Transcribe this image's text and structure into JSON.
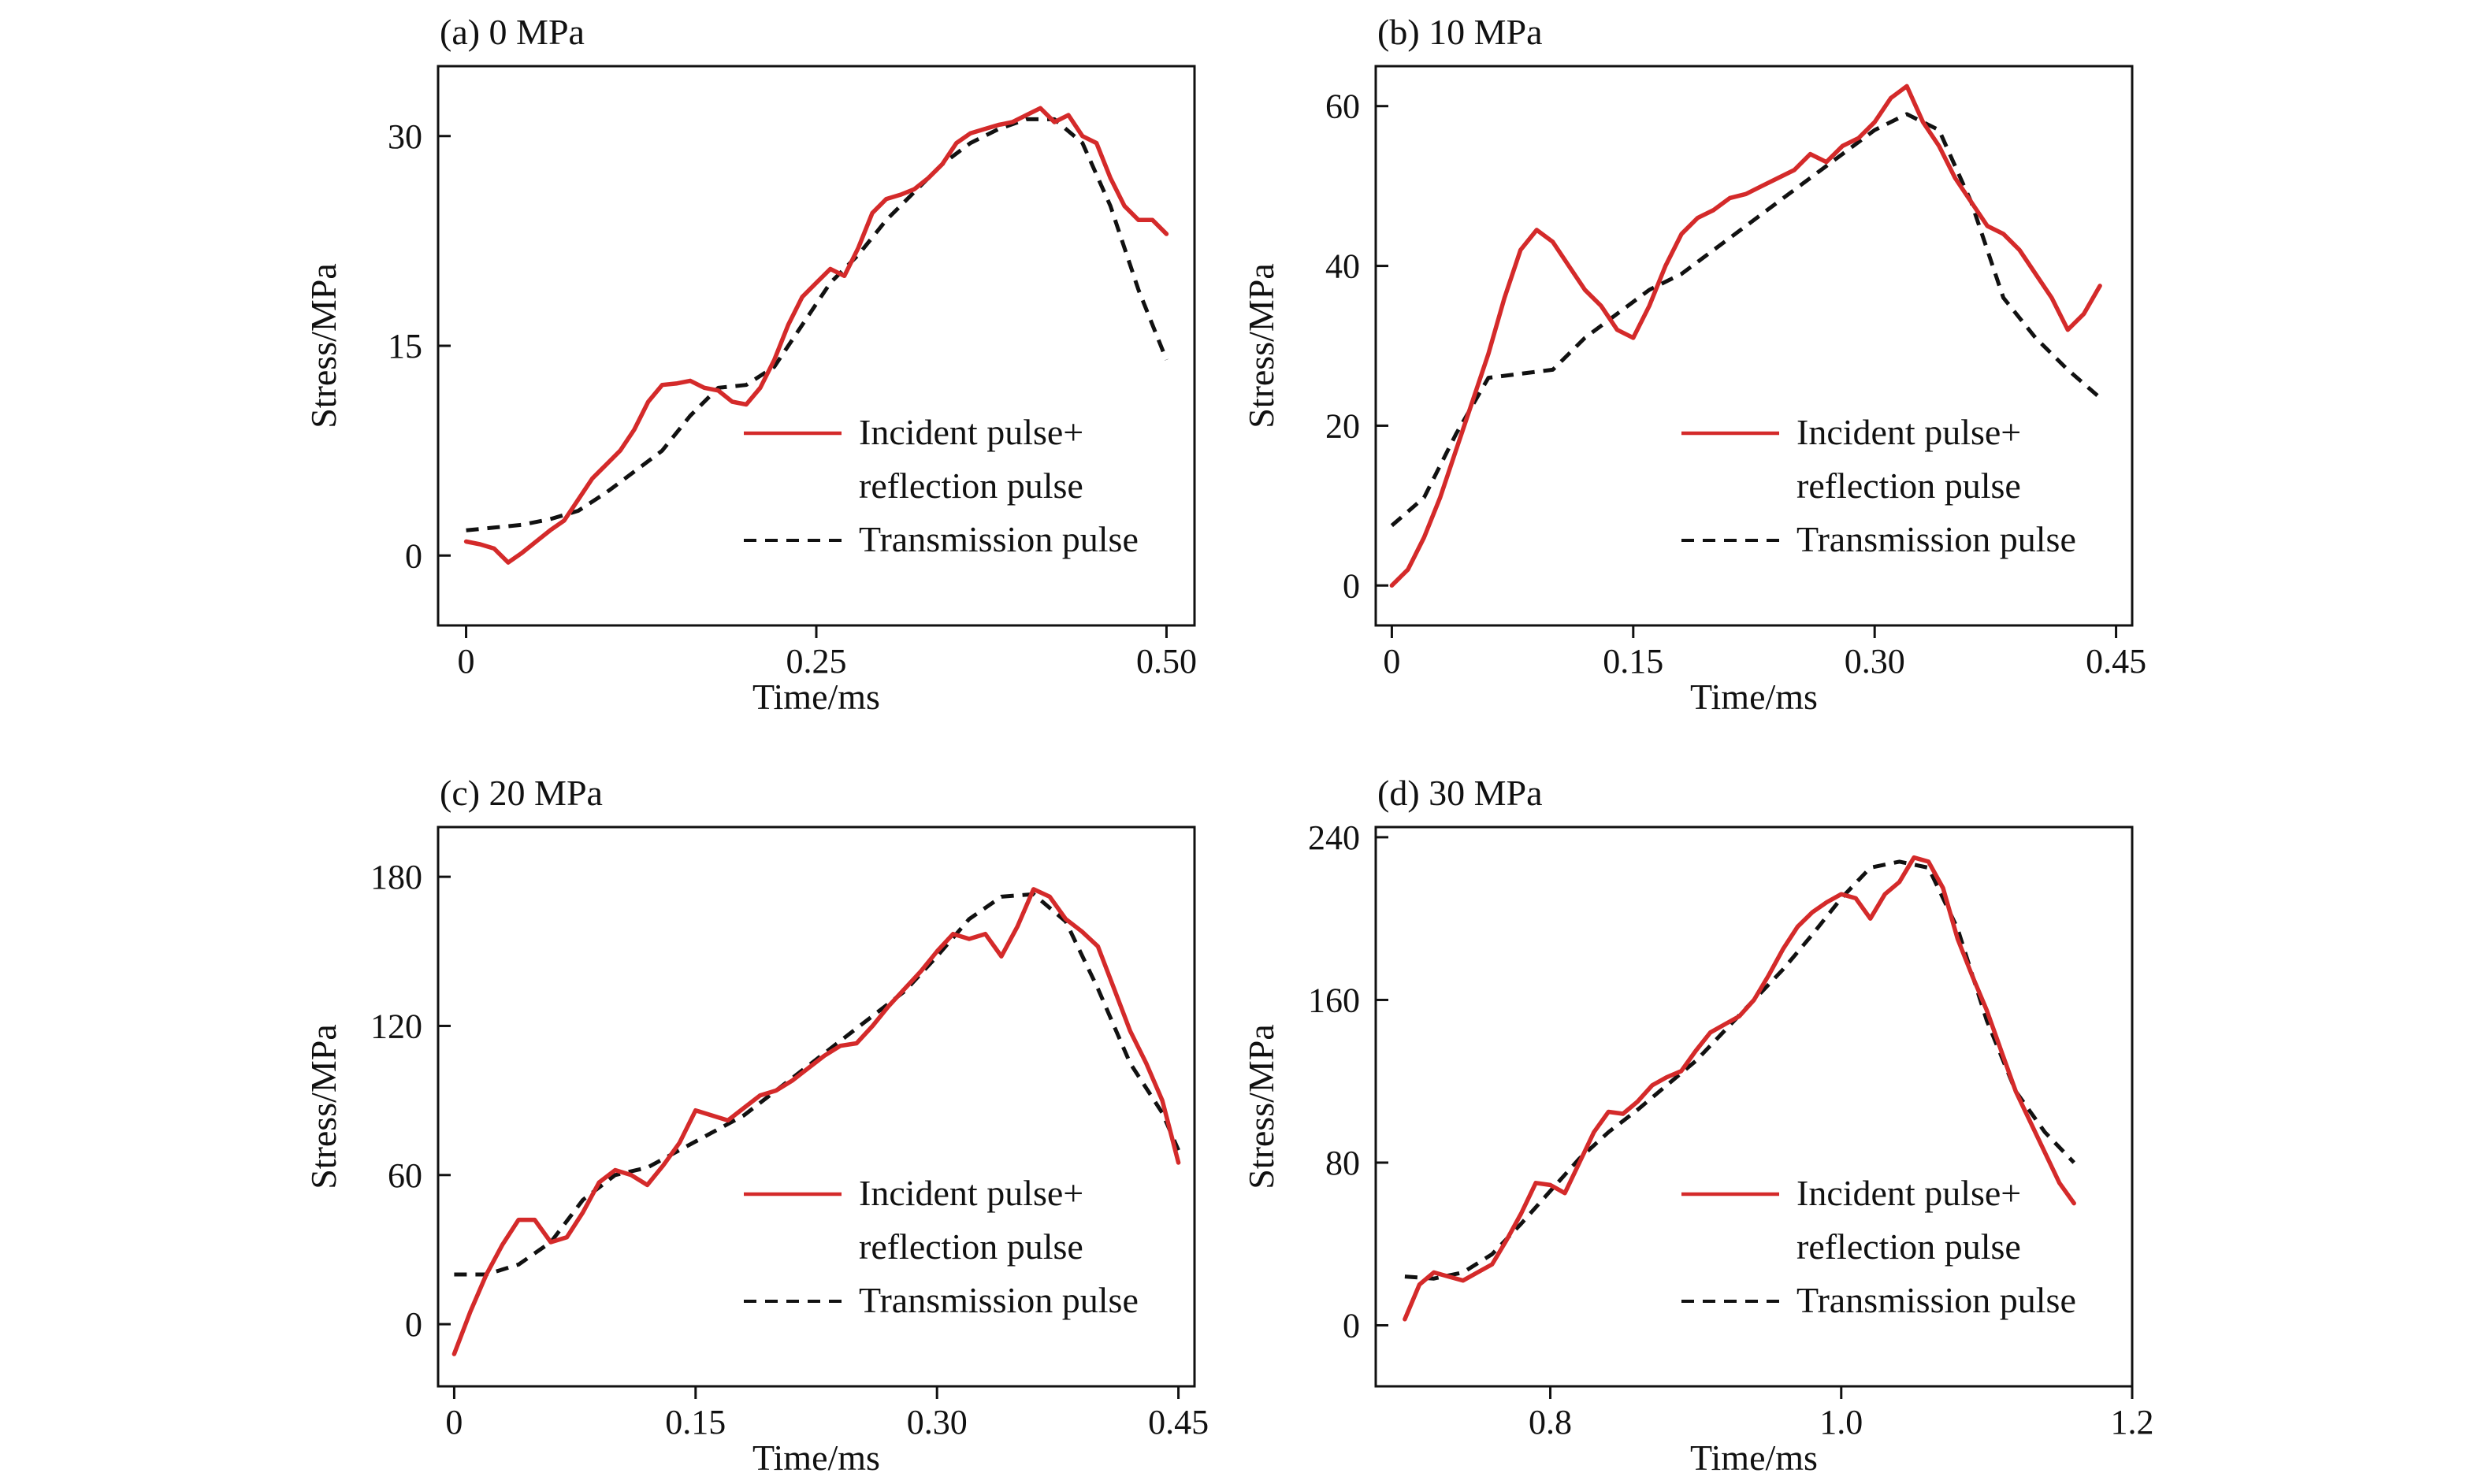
{
  "colors": {
    "incident": "#d42a2a",
    "transmission": "#111111",
    "axis": "#111111"
  },
  "chart_data": [
    {
      "type": "line",
      "title": "(a) 0 MPa",
      "xlabel": "Time/ms",
      "ylabel": "Stress/MPa",
      "xlim": [
        -0.02,
        0.52
      ],
      "ylim": [
        -5,
        35
      ],
      "xticks": [
        0,
        0.25,
        0.5
      ],
      "xtick_labels": [
        "0",
        "0.25",
        "0.50"
      ],
      "yticks": [
        0,
        15,
        30
      ],
      "ytick_labels": [
        "0",
        "15",
        "30"
      ],
      "legend_position": "lower-right",
      "series": [
        {
          "name": "Incident pulse+\nreflection pulse",
          "legend_lines": [
            "Incident pulse+",
            "reflection pulse"
          ],
          "style": "solid",
          "color": "#d42a2a",
          "x": [
            0,
            0.01,
            0.02,
            0.03,
            0.04,
            0.05,
            0.06,
            0.07,
            0.08,
            0.09,
            0.1,
            0.11,
            0.12,
            0.13,
            0.14,
            0.15,
            0.16,
            0.17,
            0.18,
            0.19,
            0.2,
            0.21,
            0.22,
            0.23,
            0.24,
            0.25,
            0.26,
            0.27,
            0.28,
            0.29,
            0.3,
            0.31,
            0.32,
            0.33,
            0.34,
            0.35,
            0.36,
            0.37,
            0.38,
            0.39,
            0.4,
            0.41,
            0.42,
            0.43,
            0.44,
            0.45,
            0.46,
            0.47,
            0.48,
            0.49,
            0.5
          ],
          "y": [
            1.0,
            0.8,
            0.5,
            -0.5,
            0.2,
            1.0,
            1.8,
            2.5,
            4.0,
            5.5,
            6.5,
            7.5,
            9.0,
            11.0,
            12.2,
            12.3,
            12.5,
            12.0,
            11.8,
            11.0,
            10.8,
            12.0,
            14.0,
            16.5,
            18.5,
            19.5,
            20.5,
            20.0,
            22.0,
            24.5,
            25.5,
            25.8,
            26.2,
            27.0,
            28.0,
            29.5,
            30.2,
            30.5,
            30.8,
            31.0,
            31.5,
            32.0,
            31.0,
            31.5,
            30.0,
            29.5,
            27.0,
            25.0,
            24.0,
            24.0,
            23.0
          ]
        },
        {
          "name": "Transmission pulse",
          "legend_lines": [
            "Transmission pulse"
          ],
          "style": "dashed",
          "color": "#111111",
          "x": [
            0,
            0.02,
            0.04,
            0.06,
            0.08,
            0.1,
            0.12,
            0.14,
            0.16,
            0.18,
            0.2,
            0.22,
            0.24,
            0.26,
            0.28,
            0.3,
            0.32,
            0.34,
            0.36,
            0.38,
            0.4,
            0.42,
            0.44,
            0.46,
            0.48,
            0.5
          ],
          "y": [
            1.8,
            2.0,
            2.2,
            2.6,
            3.2,
            4.5,
            6.0,
            7.5,
            10.0,
            12.0,
            12.2,
            13.5,
            16.5,
            19.5,
            21.5,
            24.0,
            26.0,
            28.0,
            29.5,
            30.5,
            31.2,
            31.2,
            29.5,
            25.0,
            19.0,
            14.0
          ]
        }
      ]
    },
    {
      "type": "line",
      "title": "(b) 10 MPa",
      "xlabel": "Time/ms",
      "ylabel": "Stress/MPa",
      "xlim": [
        -0.01,
        0.46
      ],
      "ylim": [
        -5,
        65
      ],
      "xticks": [
        0,
        0.15,
        0.3,
        0.45
      ],
      "xtick_labels": [
        "0",
        "0.15",
        "0.30",
        "0.45"
      ],
      "yticks": [
        0,
        20,
        40,
        60
      ],
      "ytick_labels": [
        "0",
        "20",
        "40",
        "60"
      ],
      "legend_position": "lower-right",
      "series": [
        {
          "name": "Incident pulse+\nreflection pulse",
          "legend_lines": [
            "Incident pulse+",
            "reflection pulse"
          ],
          "style": "solid",
          "color": "#d42a2a",
          "x": [
            0,
            0.01,
            0.02,
            0.03,
            0.04,
            0.05,
            0.06,
            0.07,
            0.08,
            0.09,
            0.1,
            0.11,
            0.12,
            0.13,
            0.14,
            0.15,
            0.16,
            0.17,
            0.18,
            0.19,
            0.2,
            0.21,
            0.22,
            0.23,
            0.24,
            0.25,
            0.26,
            0.27,
            0.28,
            0.29,
            0.3,
            0.31,
            0.32,
            0.33,
            0.34,
            0.35,
            0.36,
            0.37,
            0.38,
            0.39,
            0.4,
            0.41,
            0.42,
            0.43,
            0.44
          ],
          "y": [
            0,
            2,
            6,
            11,
            17,
            23,
            29,
            36,
            42,
            44.5,
            43,
            40,
            37,
            35,
            32,
            31,
            35,
            40,
            44,
            46,
            47,
            48.5,
            49,
            50,
            51,
            52,
            54,
            53,
            55,
            56,
            58,
            61,
            62.5,
            58,
            55,
            51,
            48,
            45,
            44,
            42,
            39,
            36,
            32,
            34,
            37.5
          ]
        },
        {
          "name": "Transmission pulse",
          "legend_lines": [
            "Transmission pulse"
          ],
          "style": "dashed",
          "color": "#111111",
          "x": [
            0,
            0.02,
            0.04,
            0.06,
            0.08,
            0.1,
            0.12,
            0.14,
            0.16,
            0.18,
            0.2,
            0.22,
            0.24,
            0.26,
            0.28,
            0.3,
            0.32,
            0.34,
            0.36,
            0.38,
            0.4,
            0.42,
            0.44
          ],
          "y": [
            7.5,
            11,
            19,
            26,
            26.5,
            27,
            31,
            34,
            37,
            39,
            42,
            45,
            48,
            51,
            54,
            57,
            59,
            57,
            48,
            36,
            31,
            27,
            23.5
          ]
        }
      ]
    },
    {
      "type": "line",
      "title": "(c) 20 MPa",
      "xlabel": "Time/ms",
      "ylabel": "Stress/MPa",
      "xlim": [
        -0.01,
        0.46
      ],
      "ylim": [
        -25,
        200
      ],
      "xticks": [
        0,
        0.15,
        0.3,
        0.45
      ],
      "xtick_labels": [
        "0",
        "0.15",
        "0.30",
        "0.45"
      ],
      "yticks": [
        0,
        60,
        120,
        180
      ],
      "ytick_labels": [
        "0",
        "60",
        "120",
        "180"
      ],
      "legend_position": "lower-right",
      "series": [
        {
          "name": "Incident pulse+\nreflection pulse",
          "legend_lines": [
            "Incident pulse+",
            "reflection pulse"
          ],
          "style": "solid",
          "color": "#d42a2a",
          "x": [
            0,
            0.01,
            0.02,
            0.03,
            0.04,
            0.05,
            0.06,
            0.07,
            0.08,
            0.09,
            0.1,
            0.11,
            0.12,
            0.13,
            0.14,
            0.15,
            0.16,
            0.17,
            0.18,
            0.19,
            0.2,
            0.21,
            0.22,
            0.23,
            0.24,
            0.25,
            0.26,
            0.27,
            0.28,
            0.29,
            0.3,
            0.31,
            0.32,
            0.33,
            0.34,
            0.35,
            0.36,
            0.37,
            0.38,
            0.39,
            0.4,
            0.41,
            0.42,
            0.43,
            0.44,
            0.45
          ],
          "y": [
            -12,
            5,
            20,
            32,
            42,
            42,
            33,
            35,
            45,
            57,
            62,
            60,
            56,
            64,
            73,
            86,
            84,
            82,
            87,
            92,
            94,
            98,
            103,
            108,
            112,
            113,
            120,
            128,
            135,
            142,
            150,
            157,
            155,
            157,
            148,
            160,
            175,
            172,
            163,
            158,
            152,
            135,
            118,
            105,
            90,
            65
          ]
        },
        {
          "name": "Transmission pulse",
          "legend_lines": [
            "Transmission pulse"
          ],
          "style": "dashed",
          "color": "#111111",
          "x": [
            0,
            0.02,
            0.04,
            0.06,
            0.08,
            0.1,
            0.12,
            0.14,
            0.16,
            0.18,
            0.2,
            0.22,
            0.24,
            0.26,
            0.28,
            0.3,
            0.32,
            0.34,
            0.36,
            0.38,
            0.4,
            0.42,
            0.44,
            0.45
          ],
          "y": [
            20,
            20,
            24,
            33,
            50,
            60,
            63,
            70,
            77,
            84,
            94,
            104,
            114,
            124,
            134,
            148,
            163,
            172,
            173,
            162,
            135,
            105,
            85,
            70
          ]
        }
      ]
    },
    {
      "type": "line",
      "title": "(d) 30 MPa",
      "xlabel": "Time/ms",
      "ylabel": "Stress/MPa",
      "xlim": [
        0.68,
        1.2
      ],
      "ylim": [
        -30,
        245
      ],
      "xticks": [
        0.8,
        1.0,
        1.2
      ],
      "xtick_labels": [
        "0.8",
        "1.0",
        "1.2"
      ],
      "yticks": [
        0,
        80,
        160,
        240
      ],
      "ytick_labels": [
        "0",
        "80",
        "160",
        "240"
      ],
      "legend_position": "lower-right",
      "series": [
        {
          "name": "Incident pulse+\nreflection pulse",
          "legend_lines": [
            "Incident pulse+",
            "reflection pulse"
          ],
          "style": "solid",
          "color": "#d42a2a",
          "x": [
            0.7,
            0.71,
            0.72,
            0.73,
            0.74,
            0.75,
            0.76,
            0.77,
            0.78,
            0.79,
            0.8,
            0.81,
            0.82,
            0.83,
            0.84,
            0.85,
            0.86,
            0.87,
            0.88,
            0.89,
            0.9,
            0.91,
            0.92,
            0.93,
            0.94,
            0.95,
            0.96,
            0.97,
            0.98,
            0.99,
            1.0,
            1.01,
            1.02,
            1.03,
            1.04,
            1.05,
            1.06,
            1.07,
            1.08,
            1.09,
            1.1,
            1.11,
            1.12,
            1.13,
            1.14,
            1.15,
            1.16
          ],
          "y": [
            3,
            20,
            26,
            24,
            22,
            26,
            30,
            42,
            55,
            70,
            69,
            65,
            80,
            95,
            105,
            104,
            110,
            118,
            122,
            125,
            135,
            144,
            148,
            152,
            160,
            172,
            185,
            196,
            203,
            208,
            212,
            210,
            200,
            212,
            218,
            230,
            228,
            215,
            190,
            172,
            155,
            135,
            115,
            100,
            85,
            70,
            60
          ]
        },
        {
          "name": "Transmission pulse",
          "legend_lines": [
            "Transmission pulse"
          ],
          "style": "dashed",
          "color": "#111111",
          "x": [
            0.7,
            0.72,
            0.74,
            0.76,
            0.78,
            0.8,
            0.82,
            0.84,
            0.86,
            0.88,
            0.9,
            0.92,
            0.94,
            0.96,
            0.98,
            1.0,
            1.02,
            1.04,
            1.06,
            1.08,
            1.1,
            1.12,
            1.14,
            1.16
          ],
          "y": [
            24,
            23,
            26,
            35,
            50,
            66,
            82,
            95,
            106,
            118,
            130,
            145,
            160,
            175,
            192,
            210,
            225,
            228,
            225,
            195,
            150,
            115,
            95,
            80
          ]
        }
      ]
    }
  ]
}
